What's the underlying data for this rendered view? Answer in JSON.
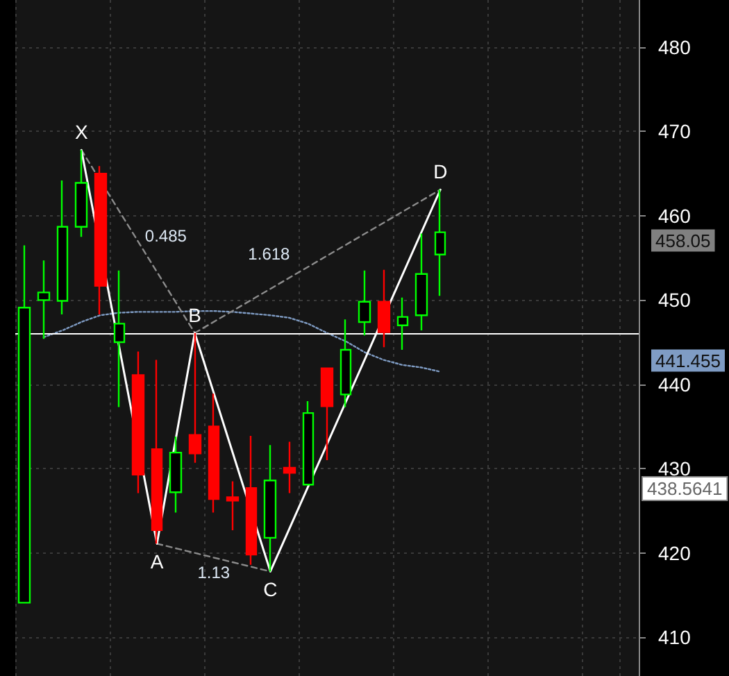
{
  "chart_data": {
    "type": "candlestick",
    "categories": [
      null,
      null,
      null,
      null,
      null,
      null,
      null,
      null,
      null,
      null,
      null,
      null,
      null,
      null,
      null,
      null,
      null,
      null,
      null,
      null,
      null,
      null,
      null,
      null,
      null,
      null,
      null,
      null,
      null,
      null,
      null,
      null,
      null
    ],
    "ohlc": [
      [
        414.1,
        456.5,
        414.1,
        449.1
      ],
      [
        450.0,
        454.7,
        445.4,
        450.9
      ],
      [
        449.9,
        464.2,
        448.3,
        458.7
      ],
      [
        458.7,
        467.8,
        457.5,
        463.9
      ],
      [
        465.0,
        465.9,
        448.3,
        451.7
      ],
      [
        445.0,
        453.5,
        437.3,
        447.2
      ],
      [
        441.1,
        443.9,
        427.1,
        429.3
      ],
      [
        432.3,
        442.9,
        421.1,
        422.7
      ],
      [
        427.2,
        433.8,
        424.8,
        431.9
      ],
      [
        434.0,
        446.1,
        430.7,
        431.8
      ],
      [
        435.0,
        438.9,
        424.8,
        426.4
      ],
      [
        426.6,
        428.5,
        422.7,
        426.2
      ],
      [
        427.7,
        433.9,
        418.6,
        419.8
      ],
      [
        421.8,
        432.8,
        417.8,
        428.6
      ],
      [
        430.1,
        433.2,
        427.1,
        429.5
      ],
      [
        428.1,
        438.0,
        428.1,
        436.6
      ],
      [
        441.9,
        441.9,
        431.0,
        437.4
      ],
      [
        438.8,
        447.7,
        437.3,
        444.1
      ],
      [
        447.4,
        453.5,
        445.8,
        449.8
      ],
      [
        449.8,
        453.6,
        444.4,
        446.2
      ],
      [
        447.0,
        450.3,
        444.1,
        448.0
      ],
      [
        448.2,
        457.9,
        446.4,
        453.1
      ],
      [
        455.4,
        463.1,
        450.5,
        458.05
      ],
      null,
      null,
      null,
      null,
      null,
      null,
      null,
      null,
      null,
      null
    ],
    "colors": [
      "#00ff00",
      "#00ff00",
      "#00ff00",
      "#00ff00",
      "#ff0000",
      "#00ff00",
      "#ff0000",
      "#ff0000",
      "#00ff00",
      "#ff0000",
      "#ff0000",
      "#ff0000",
      "#ff0000",
      "#00ff00",
      "#ff0000",
      "#00ff00",
      "#ff0000",
      "#00ff00",
      "#00ff00",
      "#ff0000",
      "#00ff00",
      "#00ff00",
      "#00ff00",
      null,
      null,
      null,
      null,
      null,
      null,
      null,
      null,
      null,
      null
    ],
    "series": [
      {
        "type": "line",
        "color": "#7f9cc4",
        "line_style": "dotted",
        "values": [
          null,
          445.6,
          446.4,
          447.4,
          448.2,
          448.5,
          448.6,
          448.6,
          448.6,
          448.7,
          448.7,
          448.6,
          448.4,
          448.2,
          447.9,
          447.2,
          446.1,
          445.1,
          443.8,
          442.9,
          442.3,
          442.0,
          441.5,
          null,
          null,
          null,
          null,
          null,
          null,
          null,
          null,
          null,
          null
        ]
      },
      {
        "type": "line",
        "color": "#8c8c8c",
        "line_style": "dashed",
        "values": [
          null,
          null,
          null,
          467.8,
          null,
          null,
          null,
          null,
          null,
          446.1,
          null,
          null,
          null,
          null,
          null,
          null,
          null,
          null,
          null,
          null,
          null,
          null,
          null,
          null,
          null,
          null,
          null,
          null,
          null,
          null,
          null,
          null,
          null
        ]
      },
      {
        "type": "line",
        "color": "#8c8c8c",
        "line_style": "dashed",
        "values": [
          null,
          null,
          null,
          null,
          null,
          null,
          null,
          421.1,
          null,
          null,
          null,
          null,
          null,
          417.8,
          null,
          null,
          null,
          null,
          null,
          null,
          null,
          null,
          null,
          null,
          null,
          null,
          null,
          null,
          null,
          null,
          null,
          null,
          null
        ]
      },
      {
        "type": "line",
        "color": "#8c8c8c",
        "line_style": "dashed",
        "values": [
          null,
          null,
          null,
          null,
          null,
          null,
          null,
          null,
          null,
          446.1,
          null,
          null,
          null,
          null,
          null,
          null,
          null,
          null,
          null,
          null,
          null,
          null,
          463.1,
          null,
          null,
          null,
          null,
          null,
          null,
          null,
          null,
          null,
          null
        ]
      },
      {
        "type": "line",
        "color": "#ffffff",
        "line_style": "solid",
        "values": [
          null,
          null,
          null,
          467.8,
          null,
          null,
          null,
          421.1,
          null,
          446.1,
          null,
          null,
          null,
          417.8,
          null,
          null,
          null,
          null,
          null,
          null,
          null,
          null,
          463.1,
          null,
          null,
          null,
          null,
          null,
          null,
          null,
          null,
          null,
          null
        ],
        "value_labels": [
          null,
          null,
          null,
          "X",
          null,
          null,
          null,
          "A",
          null,
          "B",
          null,
          null,
          null,
          "C",
          null,
          null,
          null,
          null,
          null,
          null,
          null,
          null,
          "D",
          null,
          null,
          null,
          null,
          null,
          null,
          null,
          null,
          null,
          null
        ]
      }
    ],
    "ylim": [
      405.4,
      485.6
    ],
    "yticks": [
      410,
      420,
      430,
      440,
      450,
      460,
      470,
      480
    ],
    "grid": true,
    "tick_labels": "y",
    "marker": "none",
    "ref_lines": [
      {
        "axis": "y",
        "value": 446.1,
        "color": "#ffffff"
      }
    ],
    "annotations": [
      "0.485",
      "1.13",
      "1.618",
      "458.05",
      "441.455",
      "438.5641"
    ]
  }
}
